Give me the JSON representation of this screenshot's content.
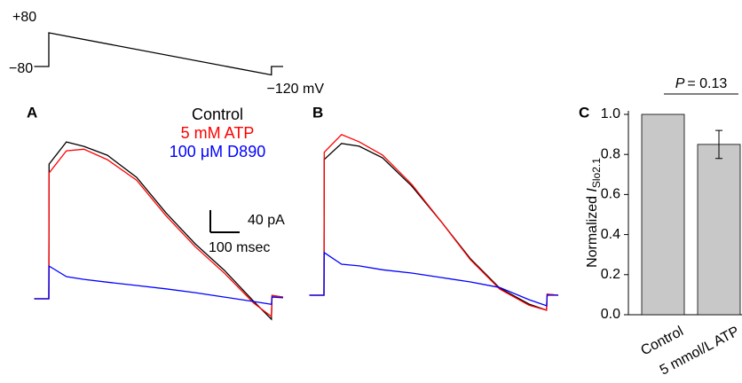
{
  "chart_data": [
    {
      "type": "line",
      "ticks": [
        {
          "value": 80,
          "label": "+80"
        },
        {
          "value": -80,
          "label": "−80"
        },
        {
          "value": -120,
          "label": "−120 mV"
        }
      ],
      "x": [
        -50,
        0,
        0,
        760,
        760,
        800
      ],
      "series": [
        {
          "color": "#000000",
          "values": [
            -80,
            -80,
            80,
            -120,
            -80,
            -80
          ]
        }
      ]
    },
    {
      "type": "line",
      "panel": "A",
      "x": [
        -50,
        0,
        1,
        60,
        120,
        200,
        300,
        400,
        500,
        600,
        700,
        760,
        762,
        800
      ],
      "series": [
        {
          "name": "Control",
          "color": "#000000",
          "values": [
            0,
            0,
            243,
            283,
            275,
            259,
            219,
            155,
            99,
            51,
            -5,
            -37,
            6,
            3
          ]
        },
        {
          "name": "5 mM ATP",
          "color": "#ff0000",
          "values": [
            0,
            0,
            227,
            267,
            270,
            251,
            214,
            150,
            94,
            46,
            -8,
            -32,
            6,
            3
          ]
        },
        {
          "name": "100 μM D890",
          "color": "#0000ff",
          "values": [
            0,
            0,
            59,
            40,
            35,
            30,
            24,
            18,
            11,
            3,
            -5,
            -10,
            3,
            2
          ]
        }
      ],
      "scale_bar": {
        "y_value": 40,
        "y_label": "40 pA",
        "x_value": 100,
        "x_label": "100 msec"
      }
    },
    {
      "type": "line",
      "panel": "B",
      "x": [
        -50,
        0,
        1,
        60,
        120,
        200,
        300,
        400,
        500,
        600,
        700,
        760,
        762,
        800
      ],
      "series": [
        {
          "color": "#000000",
          "values": [
            0,
            0,
            245,
            274,
            269,
            248,
            197,
            133,
            66,
            13,
            -16,
            -27,
            2,
            0
          ]
        },
        {
          "color": "#ff0000",
          "values": [
            0,
            0,
            258,
            290,
            277,
            253,
            200,
            133,
            64,
            11,
            -18,
            -27,
            2,
            0
          ]
        },
        {
          "color": "#0000ff",
          "values": [
            0,
            0,
            77,
            56,
            53,
            46,
            40,
            32,
            24,
            14,
            -8,
            -19,
            0,
            0
          ]
        }
      ]
    },
    {
      "type": "bar",
      "panel": "C",
      "ylabel": "Normalized ",
      "ylabel_italic": "I",
      "ylabel_sub": "Slo2.1",
      "categories": [
        "Control",
        "5 mmol/L ATP"
      ],
      "values": [
        1.0,
        0.85
      ],
      "errors": [
        0,
        0.07
      ],
      "color": "#c8c8c8",
      "ylim": [
        0,
        1.0
      ],
      "yticks": [
        {
          "value": 0,
          "label": "0.0"
        },
        0.2,
        0.4,
        0.6,
        0.8,
        {
          "value": 1,
          "label": "1.0"
        }
      ],
      "annotation_italic": "P",
      "annotation": "= 0.13"
    }
  ]
}
